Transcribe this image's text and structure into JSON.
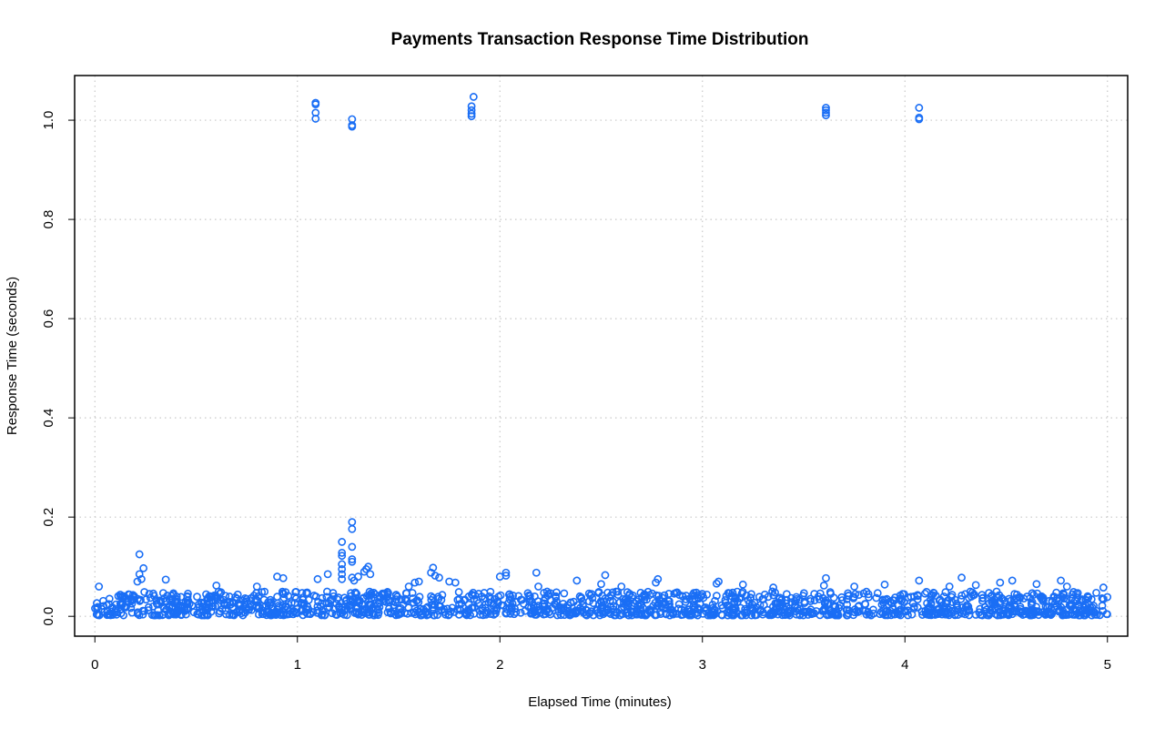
{
  "chart_data": {
    "type": "scatter",
    "title": "Payments Transaction Response Time Distribution",
    "xlabel": "Elapsed Time (minutes)",
    "ylabel": "Response Time (seconds)",
    "xlim": [
      -0.1,
      5.1
    ],
    "ylim": [
      -0.04,
      1.09
    ],
    "xticks": [
      0,
      1,
      2,
      3,
      4,
      5
    ],
    "xtick_labels": [
      "0",
      "1",
      "2",
      "3",
      "4",
      "5"
    ],
    "yticks": [
      0.0,
      0.2,
      0.4,
      0.6,
      0.8,
      1.0
    ],
    "ytick_labels": [
      "0.0",
      "0.2",
      "0.4",
      "0.6",
      "0.8",
      "1.0"
    ],
    "grid": true,
    "marker": "open-circle",
    "point_color": "#1a6ef5",
    "baseline_band": {
      "x_range": [
        0,
        5
      ],
      "y_range": [
        0.002,
        0.05
      ]
    },
    "points": [
      {
        "x": 1.09,
        "y": 1.035
      },
      {
        "x": 1.09,
        "y": 1.032
      },
      {
        "x": 1.09,
        "y": 1.015
      },
      {
        "x": 1.09,
        "y": 1.003
      },
      {
        "x": 1.27,
        "y": 1.002
      },
      {
        "x": 1.27,
        "y": 0.99
      },
      {
        "x": 1.27,
        "y": 0.987
      },
      {
        "x": 1.87,
        "y": 1.047
      },
      {
        "x": 1.86,
        "y": 1.028
      },
      {
        "x": 1.86,
        "y": 1.02
      },
      {
        "x": 1.86,
        "y": 1.013
      },
      {
        "x": 1.86,
        "y": 1.008
      },
      {
        "x": 3.61,
        "y": 1.025
      },
      {
        "x": 3.61,
        "y": 1.02
      },
      {
        "x": 3.61,
        "y": 1.015
      },
      {
        "x": 3.61,
        "y": 1.01
      },
      {
        "x": 4.07,
        "y": 1.025
      },
      {
        "x": 4.07,
        "y": 1.005
      },
      {
        "x": 4.07,
        "y": 1.002
      },
      {
        "x": 0.22,
        "y": 0.125
      },
      {
        "x": 0.24,
        "y": 0.097
      },
      {
        "x": 0.22,
        "y": 0.085
      },
      {
        "x": 0.23,
        "y": 0.075
      },
      {
        "x": 0.21,
        "y": 0.07
      },
      {
        "x": 0.35,
        "y": 0.074
      },
      {
        "x": 0.02,
        "y": 0.06
      },
      {
        "x": 0.6,
        "y": 0.062
      },
      {
        "x": 0.9,
        "y": 0.08
      },
      {
        "x": 0.93,
        "y": 0.077
      },
      {
        "x": 0.8,
        "y": 0.06
      },
      {
        "x": 1.1,
        "y": 0.075
      },
      {
        "x": 1.15,
        "y": 0.085
      },
      {
        "x": 1.27,
        "y": 0.19
      },
      {
        "x": 1.27,
        "y": 0.176
      },
      {
        "x": 1.22,
        "y": 0.15
      },
      {
        "x": 1.27,
        "y": 0.14
      },
      {
        "x": 1.22,
        "y": 0.128
      },
      {
        "x": 1.22,
        "y": 0.122
      },
      {
        "x": 1.27,
        "y": 0.115
      },
      {
        "x": 1.27,
        "y": 0.11
      },
      {
        "x": 1.22,
        "y": 0.105
      },
      {
        "x": 1.22,
        "y": 0.095
      },
      {
        "x": 1.35,
        "y": 0.1
      },
      {
        "x": 1.34,
        "y": 0.095
      },
      {
        "x": 1.33,
        "y": 0.09
      },
      {
        "x": 1.22,
        "y": 0.085
      },
      {
        "x": 1.36,
        "y": 0.085
      },
      {
        "x": 1.27,
        "y": 0.078
      },
      {
        "x": 1.3,
        "y": 0.08
      },
      {
        "x": 1.22,
        "y": 0.075
      },
      {
        "x": 1.28,
        "y": 0.072
      },
      {
        "x": 1.55,
        "y": 0.06
      },
      {
        "x": 1.58,
        "y": 0.068
      },
      {
        "x": 1.6,
        "y": 0.07
      },
      {
        "x": 1.67,
        "y": 0.098
      },
      {
        "x": 1.66,
        "y": 0.088
      },
      {
        "x": 1.68,
        "y": 0.082
      },
      {
        "x": 1.7,
        "y": 0.078
      },
      {
        "x": 1.75,
        "y": 0.07
      },
      {
        "x": 1.78,
        "y": 0.068
      },
      {
        "x": 2.03,
        "y": 0.088
      },
      {
        "x": 2.03,
        "y": 0.082
      },
      {
        "x": 2.0,
        "y": 0.08
      },
      {
        "x": 2.18,
        "y": 0.088
      },
      {
        "x": 2.19,
        "y": 0.06
      },
      {
        "x": 2.38,
        "y": 0.072
      },
      {
        "x": 2.52,
        "y": 0.083
      },
      {
        "x": 2.5,
        "y": 0.065
      },
      {
        "x": 2.6,
        "y": 0.06
      },
      {
        "x": 2.78,
        "y": 0.075
      },
      {
        "x": 2.77,
        "y": 0.068
      },
      {
        "x": 3.08,
        "y": 0.07
      },
      {
        "x": 3.07,
        "y": 0.066
      },
      {
        "x": 3.2,
        "y": 0.064
      },
      {
        "x": 3.35,
        "y": 0.058
      },
      {
        "x": 3.61,
        "y": 0.077
      },
      {
        "x": 3.6,
        "y": 0.062
      },
      {
        "x": 3.75,
        "y": 0.06
      },
      {
        "x": 3.9,
        "y": 0.064
      },
      {
        "x": 4.07,
        "y": 0.072
      },
      {
        "x": 4.22,
        "y": 0.06
      },
      {
        "x": 4.28,
        "y": 0.078
      },
      {
        "x": 4.35,
        "y": 0.063
      },
      {
        "x": 4.47,
        "y": 0.068
      },
      {
        "x": 4.53,
        "y": 0.072
      },
      {
        "x": 4.65,
        "y": 0.065
      },
      {
        "x": 4.77,
        "y": 0.072
      },
      {
        "x": 4.8,
        "y": 0.06
      },
      {
        "x": 4.98,
        "y": 0.058
      }
    ]
  }
}
